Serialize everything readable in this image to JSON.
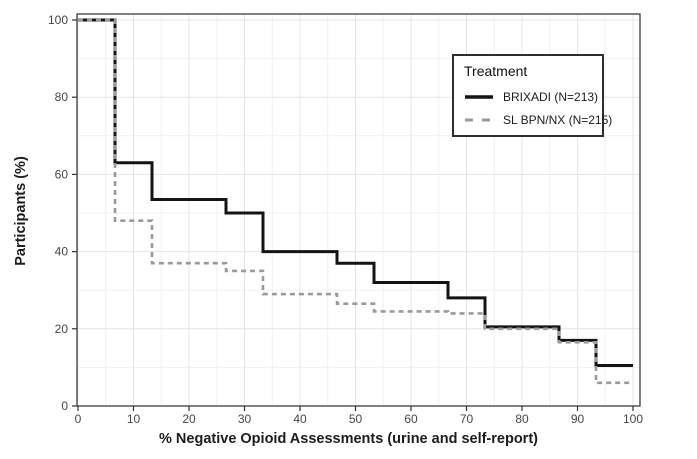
{
  "chart_data": {
    "type": "line",
    "variant": "step-cdf",
    "title": "",
    "xlabel": "% Negative Opioid Assessments (urine and self-report)",
    "ylabel": "Participants (%)",
    "xlim": [
      0,
      100
    ],
    "ylim": [
      0,
      100
    ],
    "x_ticks": [
      0,
      10,
      20,
      30,
      40,
      50,
      60,
      70,
      80,
      90,
      100
    ],
    "y_ticks": [
      0,
      20,
      40,
      60,
      80,
      100
    ],
    "x_minor_ticks": [
      5,
      15,
      25,
      35,
      45,
      55,
      65,
      75,
      85,
      95
    ],
    "y_minor_ticks": [
      10,
      30,
      50,
      70,
      90
    ],
    "grid": "major+minor",
    "panel_border": true,
    "legend": {
      "title": "Treatment",
      "position": "top-right-inside",
      "entries": [
        {
          "label": "BRIXADI (N=213)",
          "line_style": "solid",
          "color": "#141414"
        },
        {
          "label": "SL BPN/NX (N=215)",
          "line_style": "dashed",
          "color": "#9a9a9a"
        }
      ]
    },
    "series": [
      {
        "name": "BRIXADI (N=213)",
        "line_style": "solid",
        "color": "#141414",
        "step_edges_x": [
          0,
          6.67,
          13.33,
          26.67,
          33.33,
          46.67,
          53.33,
          66.67,
          73.33,
          86.67,
          93.33,
          100
        ],
        "levels_y": [
          100,
          63,
          53.5,
          50,
          40,
          37,
          32,
          28,
          20.5,
          17,
          10.5
        ]
      },
      {
        "name": "SL BPN/NX (N=215)",
        "line_style": "dashed",
        "color": "#9a9a9a",
        "step_edges_x": [
          0,
          6.67,
          13.33,
          26.67,
          33.33,
          46.67,
          53.33,
          66.67,
          73.33,
          86.67,
          93.33,
          100
        ],
        "levels_y": [
          100,
          48,
          37,
          35,
          29,
          26.5,
          24.5,
          24,
          20,
          16.5,
          6
        ]
      }
    ],
    "style_colors": {
      "grid_major": "#e4e4e4",
      "grid_minor": "#f1f1f1",
      "panel_border": "#3c3c3c",
      "tick": "#333333",
      "tick_label": "#464646"
    }
  }
}
